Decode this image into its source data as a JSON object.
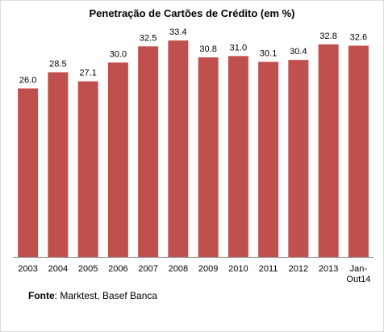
{
  "colors": {
    "bar": "#c0504d",
    "axis": "#7f7f7f"
  },
  "source": {
    "label": "Fonte",
    "text": ": Marktest, Basef Banca"
  },
  "chart_data": {
    "type": "bar",
    "title": "Penetração de Cartões de Crédito (em %)",
    "categories": [
      "2003",
      "2004",
      "2005",
      "2006",
      "2007",
      "2008",
      "2009",
      "2010",
      "2011",
      "2012",
      "2013",
      "Jan-Out14"
    ],
    "category_lines": [
      [
        "2003"
      ],
      [
        "2004"
      ],
      [
        "2005"
      ],
      [
        "2006"
      ],
      [
        "2007"
      ],
      [
        "2008"
      ],
      [
        "2009"
      ],
      [
        "2010"
      ],
      [
        "2011"
      ],
      [
        "2012"
      ],
      [
        "2013"
      ],
      [
        "Jan-",
        "Out14"
      ]
    ],
    "values": [
      26.0,
      28.5,
      27.1,
      30.0,
      32.5,
      33.4,
      30.8,
      31.0,
      30.1,
      30.4,
      32.8,
      32.6
    ],
    "value_labels": [
      "26.0",
      "28.5",
      "27.1",
      "30.0",
      "32.5",
      "33.4",
      "30.8",
      "31.0",
      "30.1",
      "30.4",
      "32.8",
      "32.6"
    ],
    "xlabel": "",
    "ylabel": "",
    "ylim": [
      0,
      36
    ],
    "grid": false,
    "legend": "none"
  }
}
